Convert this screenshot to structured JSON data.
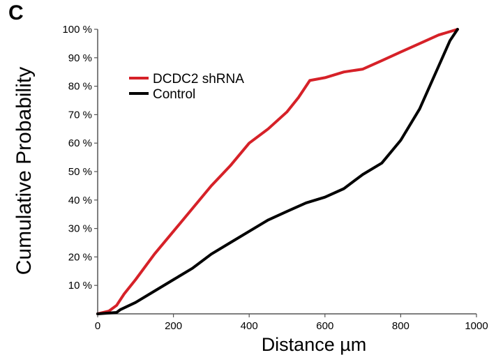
{
  "panel_label": "C",
  "chart_data": {
    "type": "line",
    "title": "",
    "xlabel": "Distance µm",
    "ylabel": "Cumulative Probability",
    "xlim": [
      0,
      1000
    ],
    "ylim": [
      0,
      100
    ],
    "xticks": [
      0,
      200,
      400,
      600,
      800,
      1000
    ],
    "xtick_labels": [
      "0",
      "200",
      "400",
      "600",
      "800",
      "1000"
    ],
    "yticks": [
      10,
      20,
      30,
      40,
      50,
      60,
      70,
      80,
      90,
      100
    ],
    "ytick_labels": [
      "10 %",
      "20 %",
      "30 %",
      "40 %",
      "50 %",
      "60 %",
      "70 %",
      "80 %",
      "90 %",
      "100 %"
    ],
    "grid": false,
    "legend_position": "top-left",
    "series": [
      {
        "name": "DCDC2 shRNA",
        "color": "#d62128",
        "x": [
          0,
          30,
          50,
          70,
          100,
          150,
          200,
          250,
          300,
          350,
          400,
          450,
          500,
          530,
          560,
          600,
          650,
          700,
          750,
          800,
          850,
          900,
          950
        ],
        "y": [
          0,
          1,
          3,
          7,
          12,
          21,
          29,
          37,
          45,
          52,
          60,
          65,
          71,
          76,
          82,
          83,
          85,
          86,
          89,
          92,
          95,
          98,
          100
        ]
      },
      {
        "name": "Control",
        "color": "#000000",
        "x": [
          0,
          50,
          60,
          100,
          150,
          200,
          250,
          300,
          350,
          400,
          450,
          500,
          550,
          600,
          650,
          700,
          750,
          800,
          850,
          900,
          930,
          950
        ],
        "y": [
          0,
          0.5,
          1.5,
          4,
          8,
          12,
          16,
          21,
          25,
          29,
          33,
          36,
          39,
          41,
          44,
          49,
          53,
          61,
          72,
          87,
          96,
          100
        ]
      }
    ]
  }
}
